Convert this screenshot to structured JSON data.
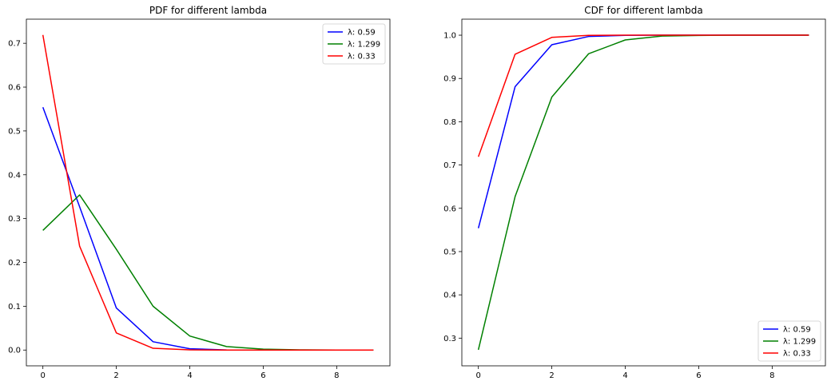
{
  "chart_data": [
    {
      "type": "line",
      "title": "PDF for different lambda",
      "xlabel": "",
      "ylabel": "",
      "xlim": [
        -0.45,
        9.45
      ],
      "ylim": [
        -0.036,
        0.755
      ],
      "xticks": [
        0,
        2,
        4,
        6,
        8
      ],
      "yticks": [
        0.0,
        0.1,
        0.2,
        0.3,
        0.4,
        0.5,
        0.6,
        0.7
      ],
      "ytick_labels": [
        "0.0",
        "0.1",
        "0.2",
        "0.3",
        "0.4",
        "0.5",
        "0.6",
        "0.7"
      ],
      "grid": false,
      "legend_position": "upper right",
      "x": [
        0,
        1,
        2,
        3,
        4,
        5,
        6,
        7,
        8,
        9
      ],
      "series": [
        {
          "name": "λ: 0.59",
          "color": "#0000ff",
          "values": [
            0.554,
            0.327,
            0.096,
            0.019,
            0.003,
            0.0003,
            0.0,
            0.0,
            0.0,
            0.0
          ]
        },
        {
          "name": "λ: 1.299",
          "color": "#008000",
          "values": [
            0.273,
            0.354,
            0.23,
            0.1,
            0.032,
            0.008,
            0.002,
            0.0004,
            0.0,
            0.0
          ]
        },
        {
          "name": "λ: 0.33",
          "color": "#ff0000",
          "values": [
            0.719,
            0.237,
            0.039,
            0.004,
            0.0004,
            0.0,
            0.0,
            0.0,
            0.0,
            0.0
          ]
        }
      ]
    },
    {
      "type": "line",
      "title": "CDF for different lambda",
      "xlabel": "",
      "ylabel": "",
      "xlim": [
        -0.45,
        9.45
      ],
      "ylim": [
        0.236,
        1.037
      ],
      "xticks": [
        0,
        2,
        4,
        6,
        8
      ],
      "yticks": [
        0.3,
        0.4,
        0.5,
        0.6,
        0.7,
        0.8,
        0.9,
        1.0
      ],
      "ytick_labels": [
        "0.3",
        "0.4",
        "0.5",
        "0.6",
        "0.7",
        "0.8",
        "0.9",
        "1.0"
      ],
      "grid": false,
      "legend_position": "lower right",
      "x": [
        0,
        1,
        2,
        3,
        4,
        5,
        6,
        7,
        8,
        9
      ],
      "series": [
        {
          "name": "λ: 0.59",
          "color": "#0000ff",
          "values": [
            0.554,
            0.881,
            0.978,
            0.997,
            0.9996,
            1.0,
            1.0,
            1.0,
            1.0,
            1.0
          ]
        },
        {
          "name": "λ: 1.299",
          "color": "#008000",
          "values": [
            0.273,
            0.627,
            0.857,
            0.957,
            0.989,
            0.998,
            0.9995,
            1.0,
            1.0,
            1.0
          ]
        },
        {
          "name": "λ: 0.33",
          "color": "#ff0000",
          "values": [
            0.719,
            0.956,
            0.995,
            0.9996,
            1.0,
            1.0,
            1.0,
            1.0,
            1.0,
            1.0
          ]
        }
      ]
    }
  ]
}
